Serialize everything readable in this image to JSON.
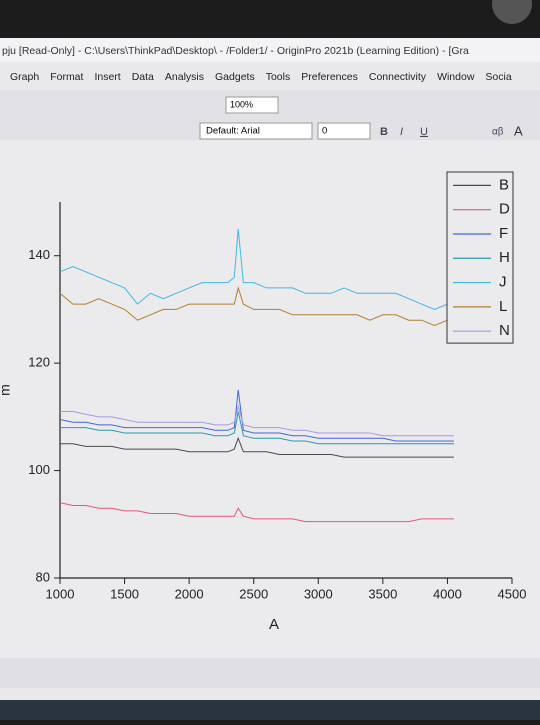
{
  "window": {
    "title": "pju [Read-Only] - C:\\Users\\ThinkPad\\Desktop\\ - /Folder1/ - OriginPro 2021b (Learning Edition) - [Gra"
  },
  "menu": [
    "Graph",
    "Format",
    "Insert",
    "Data",
    "Analysis",
    "Gadgets",
    "Tools",
    "Preferences",
    "Connectivity",
    "Window",
    "Socia"
  ],
  "toolbar": {
    "zoom": "100%",
    "font": "Default: Arial",
    "font_size": "0",
    "bold": "B",
    "italic": "I",
    "underline": "U",
    "greek": "αβ",
    "font_up": "A"
  },
  "chart_data": {
    "type": "line",
    "x_label": "A",
    "y_label": "m",
    "x": [
      1000,
      1100,
      1200,
      1300,
      1400,
      1500,
      1600,
      1700,
      1800,
      1900,
      2000,
      2100,
      2200,
      2300,
      2350,
      2380,
      2420,
      2500,
      2600,
      2700,
      2800,
      2900,
      3000,
      3100,
      3200,
      3300,
      3400,
      3500,
      3600,
      3700,
      3800,
      3900,
      4000,
      4050
    ],
    "xlim": [
      1000,
      4500
    ],
    "xticks": [
      1000,
      1500,
      2000,
      2500,
      3000,
      3500,
      4000,
      4500
    ],
    "ylim": [
      80,
      150
    ],
    "yticks": [
      80,
      100,
      120,
      140
    ],
    "legend": "top-right",
    "series": [
      {
        "name": "B",
        "color": "#4a4a4a",
        "values": [
          105,
          105,
          104.5,
          104.5,
          104.5,
          104,
          104,
          104,
          104,
          104,
          103.5,
          103.5,
          103.5,
          103.5,
          104,
          106,
          103.5,
          103.5,
          103.5,
          103,
          103,
          103,
          103,
          103,
          102.5,
          102.5,
          102.5,
          102.5,
          102.5,
          102.5,
          102.5,
          102.5,
          102.5,
          102.5
        ]
      },
      {
        "name": "D",
        "color": "#e05878",
        "values": [
          94,
          93.5,
          93.5,
          93,
          93,
          92.5,
          92.5,
          92,
          92,
          92,
          91.5,
          91.5,
          91.5,
          91.5,
          91.5,
          93,
          91.5,
          91,
          91,
          91,
          91,
          90.5,
          90.5,
          90.5,
          90.5,
          90.5,
          90.5,
          90.5,
          90.5,
          90.5,
          91,
          91,
          91,
          91
        ]
      },
      {
        "name": "F",
        "color": "#4466d8",
        "values": [
          109.5,
          109,
          109,
          108.5,
          108.5,
          108,
          108,
          108,
          108,
          108,
          108,
          108,
          107.5,
          107.5,
          108,
          115,
          107.5,
          107,
          107,
          107,
          106.5,
          106.5,
          106,
          106,
          106,
          106,
          106,
          106,
          105.5,
          105.5,
          105.5,
          105.5,
          105.5,
          105.5
        ]
      },
      {
        "name": "H",
        "color": "#2a9aa8",
        "values": [
          108,
          108,
          108,
          107.5,
          107.5,
          107,
          107,
          107,
          107,
          107,
          107,
          107,
          106.5,
          106.5,
          107,
          111,
          106.5,
          106,
          106,
          106,
          105.5,
          105.5,
          105,
          105,
          105,
          105,
          105,
          105,
          105,
          105,
          105,
          105,
          105,
          105
        ]
      },
      {
        "name": "J",
        "color": "#40b8e0",
        "values": [
          137,
          138,
          137,
          136,
          135,
          134,
          131,
          133,
          132,
          133,
          134,
          135,
          135,
          135,
          136,
          145,
          135,
          135,
          134,
          134,
          134,
          133,
          133,
          133,
          134,
          133,
          133,
          133,
          133,
          132,
          131,
          130,
          131,
          131
        ]
      },
      {
        "name": "L",
        "color": "#b08030",
        "values": [
          133,
          131,
          131,
          132,
          131,
          130,
          128,
          129,
          130,
          130,
          131,
          131,
          131,
          131,
          131,
          134,
          131,
          130,
          130,
          130,
          129,
          129,
          129,
          129,
          129,
          129,
          128,
          129,
          129,
          128,
          128,
          127,
          128,
          128
        ]
      },
      {
        "name": "N",
        "color": "#a898e4",
        "values": [
          111,
          111,
          110.5,
          110,
          110,
          109.5,
          109,
          109,
          109,
          109,
          109,
          109,
          108.5,
          108.5,
          109,
          112,
          108.5,
          108,
          108,
          108,
          107.5,
          107.5,
          107,
          107,
          107,
          107,
          107,
          106.5,
          106.5,
          106.5,
          106.5,
          106.5,
          106.5,
          106.5
        ]
      }
    ]
  }
}
